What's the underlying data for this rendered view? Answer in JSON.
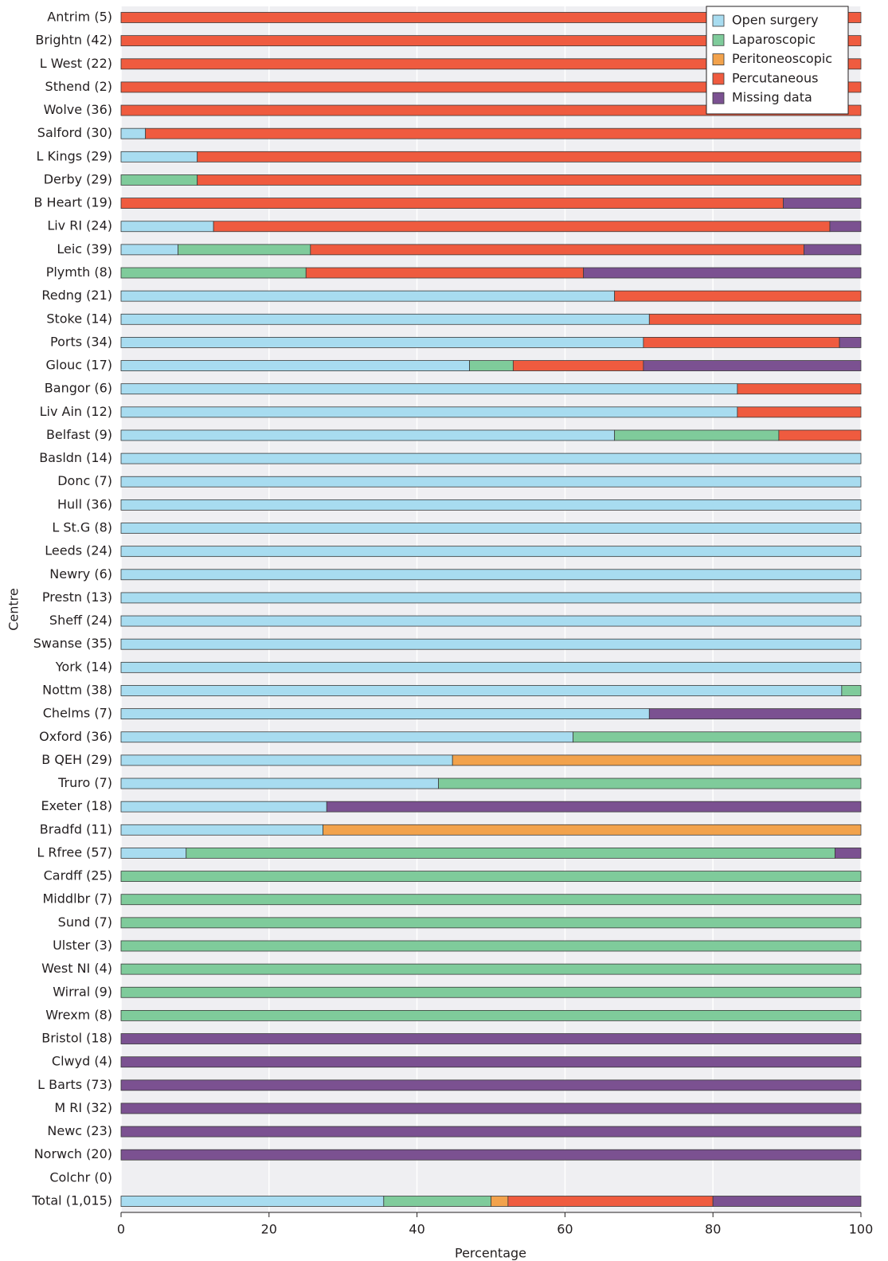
{
  "chart_data": {
    "type": "stacked-barh",
    "x_label": "Percentage",
    "y_label": "Centre",
    "categories": [
      "Antrim (5)",
      "Brightn (42)",
      "L West (22)",
      "Sthend (2)",
      "Wolve (36)",
      "Salford (30)",
      "L Kings (29)",
      "Derby (29)",
      "B Heart (19)",
      "Liv RI (24)",
      "Leic (39)",
      "Plymth (8)",
      "Redng (21)",
      "Stoke (14)",
      "Ports (34)",
      "Glouc (17)",
      "Bangor (6)",
      "Liv Ain (12)",
      "Belfast (9)",
      "Basldn (14)",
      "Donc (7)",
      "Hull (36)",
      "L St.G (8)",
      "Leeds (24)",
      "Newry (6)",
      "Prestn (13)",
      "Sheff (24)",
      "Swanse (35)",
      "York (14)",
      "Nottm (38)",
      "Chelms (7)",
      "Oxford (36)",
      "B QEH (29)",
      "Truro (7)",
      "Exeter (18)",
      "Bradfd (11)",
      "L Rfree (57)",
      "Cardff (25)",
      "Middlbr (7)",
      "Sund (7)",
      "Ulster (3)",
      "West NI (4)",
      "Wirral (9)",
      "Wrexm (8)",
      "Bristol (18)",
      "Clwyd (4)",
      "L Barts (73)",
      "M RI (32)",
      "Newc (23)",
      "Norwch (20)",
      "Colchr (0)",
      "Total (1,015)"
    ],
    "series": [
      {
        "name": "Open surgery",
        "color": "#a8dcf0",
        "values": [
          0,
          0,
          0,
          0,
          0,
          3.3,
          10.3,
          0,
          0,
          12.5,
          7.7,
          0,
          66.7,
          71.4,
          70.6,
          47.1,
          83.3,
          83.3,
          66.7,
          100,
          100,
          100,
          100,
          100,
          100,
          100,
          100,
          100,
          100,
          97.4,
          71.4,
          61.1,
          44.8,
          42.9,
          27.8,
          27.3,
          8.8,
          0,
          0,
          0,
          0,
          0,
          0,
          0,
          0,
          0,
          0,
          0,
          0,
          0,
          0,
          35.5
        ]
      },
      {
        "name": "Laparoscopic",
        "color": "#7fcb9b",
        "values": [
          0,
          0,
          0,
          0,
          0,
          0,
          0,
          10.3,
          0,
          0,
          17.9,
          25,
          0,
          0,
          0,
          5.9,
          0,
          0,
          22.2,
          0,
          0,
          0,
          0,
          0,
          0,
          0,
          0,
          0,
          0,
          2.6,
          0,
          38.9,
          0,
          57.1,
          0,
          0,
          87.7,
          100,
          100,
          100,
          100,
          100,
          100,
          100,
          0,
          0,
          0,
          0,
          0,
          0,
          0,
          14.5
        ]
      },
      {
        "name": "Peritoneoscopic",
        "color": "#f2a24c",
        "values": [
          0,
          0,
          0,
          0,
          0,
          0,
          0,
          0,
          0,
          0,
          0,
          0,
          0,
          0,
          0,
          0,
          0,
          0,
          0,
          0,
          0,
          0,
          0,
          0,
          0,
          0,
          0,
          0,
          0,
          0,
          0,
          0,
          55.2,
          0,
          0,
          72.7,
          0,
          0,
          0,
          0,
          0,
          0,
          0,
          0,
          0,
          0,
          0,
          0,
          0,
          0,
          0,
          2.3
        ]
      },
      {
        "name": "Percutaneous",
        "color": "#ef5b3f",
        "values": [
          100,
          100,
          100,
          100,
          100,
          96.7,
          89.7,
          89.7,
          89.5,
          83.3,
          66.7,
          37.5,
          33.3,
          28.6,
          26.5,
          17.6,
          16.7,
          16.7,
          11.1,
          0,
          0,
          0,
          0,
          0,
          0,
          0,
          0,
          0,
          0,
          0,
          0,
          0,
          0,
          0,
          0,
          0,
          0,
          0,
          0,
          0,
          0,
          0,
          0,
          0,
          0,
          0,
          0,
          0,
          0,
          0,
          0,
          27.7
        ]
      },
      {
        "name": "Missing data",
        "color": "#7b5191",
        "values": [
          0,
          0,
          0,
          0,
          0,
          0,
          0,
          0,
          10.5,
          4.2,
          7.7,
          37.5,
          0,
          0,
          2.9,
          29.4,
          0,
          0,
          0,
          0,
          0,
          0,
          0,
          0,
          0,
          0,
          0,
          0,
          0,
          0,
          28.6,
          0,
          0,
          0,
          72.2,
          0,
          3.5,
          0,
          0,
          0,
          0,
          0,
          0,
          0,
          100,
          100,
          100,
          100,
          100,
          100,
          0,
          20
        ]
      }
    ],
    "xlim": [
      0,
      100
    ],
    "xticks": [
      0,
      20,
      40,
      60,
      80,
      100
    ],
    "grid": true,
    "legend": "top-right"
  }
}
